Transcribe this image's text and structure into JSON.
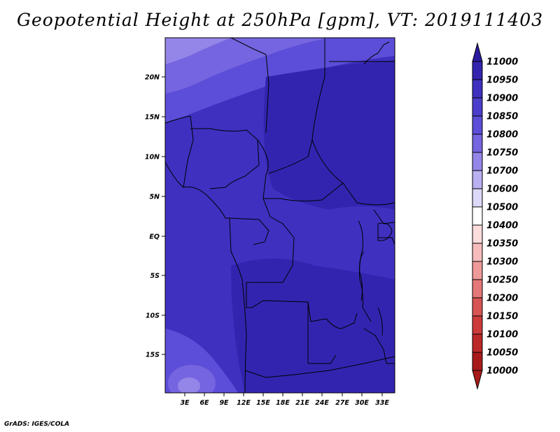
{
  "title": "Geopotential Height at 250hPa [gpm], VT: 2019111403",
  "credit": "GrADS: IGES/COLA",
  "map": {
    "lon_range": [
      0,
      35
    ],
    "lat_range": [
      -20,
      24
    ],
    "x_ticks": [
      "3E",
      "6E",
      "9E",
      "12E",
      "15E",
      "18E",
      "21E",
      "24E",
      "27E",
      "30E",
      "33E"
    ],
    "y_ticks": [
      "20N",
      "15N",
      "10N",
      "5N",
      "EQ",
      "5S",
      "10S",
      "15S"
    ]
  },
  "colorbar": {
    "levels": [
      "11000",
      "10950",
      "10900",
      "10850",
      "10800",
      "10750",
      "10700",
      "10600",
      "10500",
      "10400",
      "10350",
      "10300",
      "10250",
      "10200",
      "10150",
      "10100",
      "10050",
      "10000"
    ],
    "colors": [
      "#2a1aa0",
      "#3324b0",
      "#3f30c0",
      "#4c3ecc",
      "#5c4ed8",
      "#7565e0",
      "#9486e8",
      "#b8b0f0",
      "#dcd8f8",
      "#ffffff",
      "#fcdcdc",
      "#f6bcbc",
      "#ee9a9a",
      "#e47878",
      "#d85454",
      "#cc3a3a",
      "#bc2828",
      "#a81a1a"
    ]
  }
}
